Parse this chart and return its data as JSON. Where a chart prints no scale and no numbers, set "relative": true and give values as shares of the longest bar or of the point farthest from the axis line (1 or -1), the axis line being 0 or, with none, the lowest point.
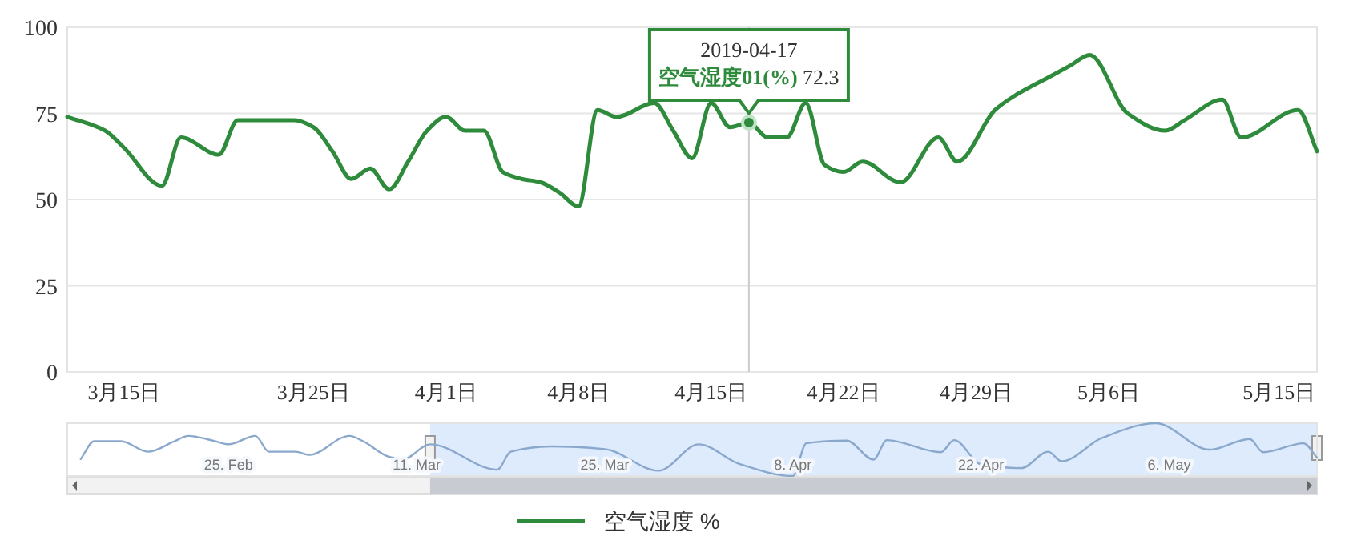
{
  "chart_data": [
    {
      "type": "line",
      "ylim": [
        0,
        100
      ],
      "yticks": [
        0,
        25,
        50,
        75,
        100
      ],
      "grid": "y",
      "legend": "bottom",
      "marker": "none",
      "line_style": "solid",
      "xlim": [
        "2019-03-12",
        "2019-05-17"
      ],
      "xticks": [
        {
          "value": "2019-03-15",
          "label": "3月15日"
        },
        {
          "value": "2019-03-25",
          "label": "3月25日"
        },
        {
          "value": "2019-04-01",
          "label": "4月1日"
        },
        {
          "value": "2019-04-08",
          "label": "4月8日"
        },
        {
          "value": "2019-04-15",
          "label": "4月15日"
        },
        {
          "value": "2019-04-22",
          "label": "4月22日"
        },
        {
          "value": "2019-04-29",
          "label": "4月29日"
        },
        {
          "value": "2019-05-06",
          "label": "5月6日"
        },
        {
          "value": "2019-05-15",
          "label": "5月15日"
        }
      ],
      "annotations": [
        {
          "text": "2019-04-17\n**空气湿度01(%)** 72.3",
          "x": "2019-04-17",
          "y": 72.3
        }
      ],
      "ref_lines": [
        {
          "axis": "x",
          "value": "2019-04-17",
          "color": "#cccccc"
        }
      ],
      "series": [
        {
          "name": "空气湿度 %",
          "color": "#2e8b3c",
          "x": [
            "2019-03-12",
            "2019-03-14",
            "2019-03-15",
            "2019-03-17",
            "2019-03-18",
            "2019-03-20",
            "2019-03-21",
            "2019-03-24",
            "2019-03-25",
            "2019-03-26",
            "2019-03-27",
            "2019-03-28",
            "2019-03-29",
            "2019-03-30",
            "2019-03-31",
            "2019-04-01",
            "2019-04-02",
            "2019-04-03",
            "2019-04-04",
            "2019-04-05",
            "2019-04-06",
            "2019-04-07",
            "2019-04-08",
            "2019-04-09",
            "2019-04-10",
            "2019-04-12",
            "2019-04-13",
            "2019-04-14",
            "2019-04-15",
            "2019-04-16",
            "2019-04-17",
            "2019-04-18",
            "2019-04-19",
            "2019-04-20",
            "2019-04-21",
            "2019-04-22",
            "2019-04-23",
            "2019-04-25",
            "2019-04-27",
            "2019-04-28",
            "2019-04-30",
            "2019-05-01",
            "2019-05-03",
            "2019-05-04",
            "2019-05-05",
            "2019-05-07",
            "2019-05-09",
            "2019-05-10",
            "2019-05-12",
            "2019-05-13",
            "2019-05-16",
            "2019-05-17"
          ],
          "values": [
            74,
            70,
            65,
            54,
            68,
            63,
            73,
            73,
            71,
            64,
            56,
            59,
            53,
            61,
            70,
            74,
            70,
            70,
            58,
            56,
            55,
            52,
            48,
            76,
            74,
            78,
            70,
            62,
            78,
            71,
            72.3,
            68,
            68,
            78,
            60,
            58,
            61,
            55,
            68,
            61,
            76,
            80,
            86,
            89,
            92,
            75,
            70,
            73,
            79,
            68,
            76,
            64
          ]
        }
      ]
    },
    {
      "type": "line",
      "relative": true,
      "tick_labels": "x",
      "marker": "none",
      "xlim": [
        "2019-02-13",
        "2019-05-17"
      ],
      "xticks": [
        {
          "value": "2019-02-25",
          "label": "25. Feb"
        },
        {
          "value": "2019-03-11",
          "label": "11. Mar"
        },
        {
          "value": "2019-03-25",
          "label": "25. Mar"
        },
        {
          "value": "2019-04-08",
          "label": "8. Apr"
        },
        {
          "value": "2019-04-22",
          "label": "22. Apr"
        },
        {
          "value": "2019-05-06",
          "label": "6. May"
        }
      ],
      "bands": [
        {
          "axis": "x",
          "from": "2019-03-12",
          "to": "2019-05-17",
          "color": "#d4e6fb"
        }
      ],
      "series": [
        {
          "color": "#8aa8cc",
          "x": [
            "2019-02-14",
            "2019-02-15",
            "2019-02-17",
            "2019-02-19",
            "2019-02-21",
            "2019-02-22",
            "2019-02-24",
            "2019-02-25",
            "2019-02-27",
            "2019-02-28",
            "2019-03-02",
            "2019-03-03",
            "2019-03-06",
            "2019-03-07",
            "2019-03-09",
            "2019-03-10",
            "2019-03-12",
            "2019-03-17",
            "2019-03-18",
            "2019-03-21",
            "2019-03-25",
            "2019-03-29",
            "2019-04-01",
            "2019-04-04",
            "2019-04-08",
            "2019-04-09",
            "2019-04-12",
            "2019-04-14",
            "2019-04-15",
            "2019-04-19",
            "2019-04-20",
            "2019-04-22",
            "2019-04-25",
            "2019-04-27",
            "2019-04-28",
            "2019-05-01",
            "2019-05-05",
            "2019-05-09",
            "2019-05-12",
            "2019-05-13",
            "2019-05-16",
            "2019-05-17"
          ],
          "values": [
            0.32,
            0.66,
            0.66,
            0.46,
            0.66,
            0.76,
            0.66,
            0.6,
            0.76,
            0.46,
            0.46,
            0.4,
            0.76,
            0.66,
            0.36,
            0.32,
            0.6,
            0.12,
            0.46,
            0.56,
            0.51,
            0.1,
            0.6,
            0.23,
            0,
            0.62,
            0.67,
            0.31,
            0.68,
            0.45,
            0.68,
            0.22,
            0.15,
            0.46,
            0.28,
            0.72,
            1,
            0.5,
            0.7,
            0.45,
            0.62,
            0.35
          ]
        }
      ]
    }
  ]
}
